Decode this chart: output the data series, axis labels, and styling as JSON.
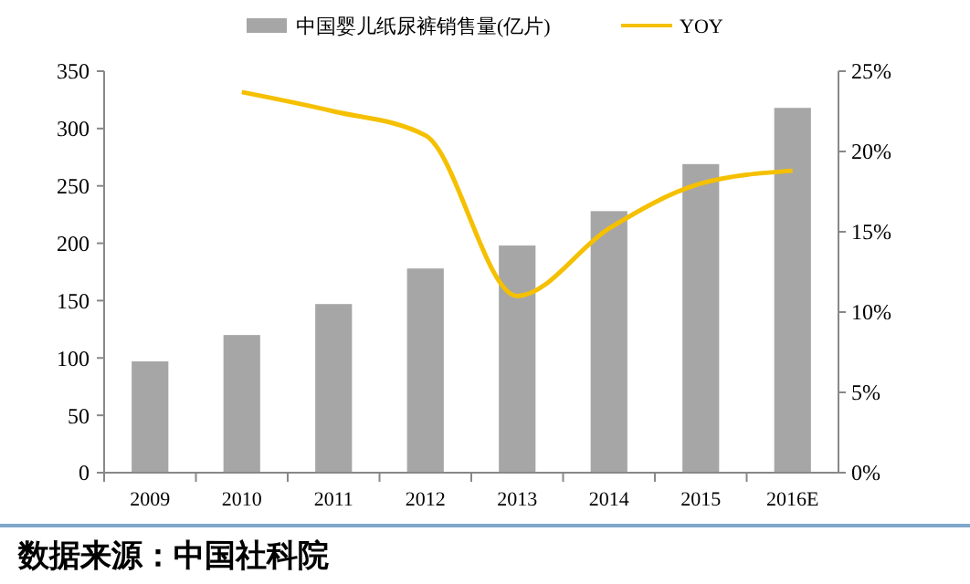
{
  "chart_data": {
    "type": "bar",
    "categories": [
      "2009",
      "2010",
      "2011",
      "2012",
      "2013",
      "2014",
      "2015",
      "2016E"
    ],
    "series": [
      {
        "name": "中国婴儿纸尿裤销售量(亿片)",
        "color": "#a6a6a6",
        "values": [
          97,
          120,
          147,
          178,
          198,
          228,
          269,
          318
        ]
      },
      {
        "name": "YOY",
        "type": "line",
        "axis": "y2",
        "color": "#f5c000",
        "values": [
          null,
          23.7,
          22.5,
          21,
          11,
          15.2,
          18,
          18.8
        ]
      }
    ],
    "ylim": [
      0,
      350
    ],
    "yticks": [
      0,
      50,
      100,
      150,
      200,
      250,
      300,
      350
    ],
    "y2lim": [
      0,
      25
    ],
    "y2ticks": [
      {
        "value": 0,
        "label": "0%"
      },
      {
        "value": 5,
        "label": "5%"
      },
      {
        "value": 10,
        "label": "10%"
      },
      {
        "value": 15,
        "label": "15%"
      },
      {
        "value": 20,
        "label": "20%"
      },
      {
        "value": 25,
        "label": "25%"
      }
    ],
    "legend": "top",
    "grid": false,
    "marker": "none",
    "line_style": "solid",
    "annotations": [
      "数据来源：中国社科院"
    ]
  }
}
